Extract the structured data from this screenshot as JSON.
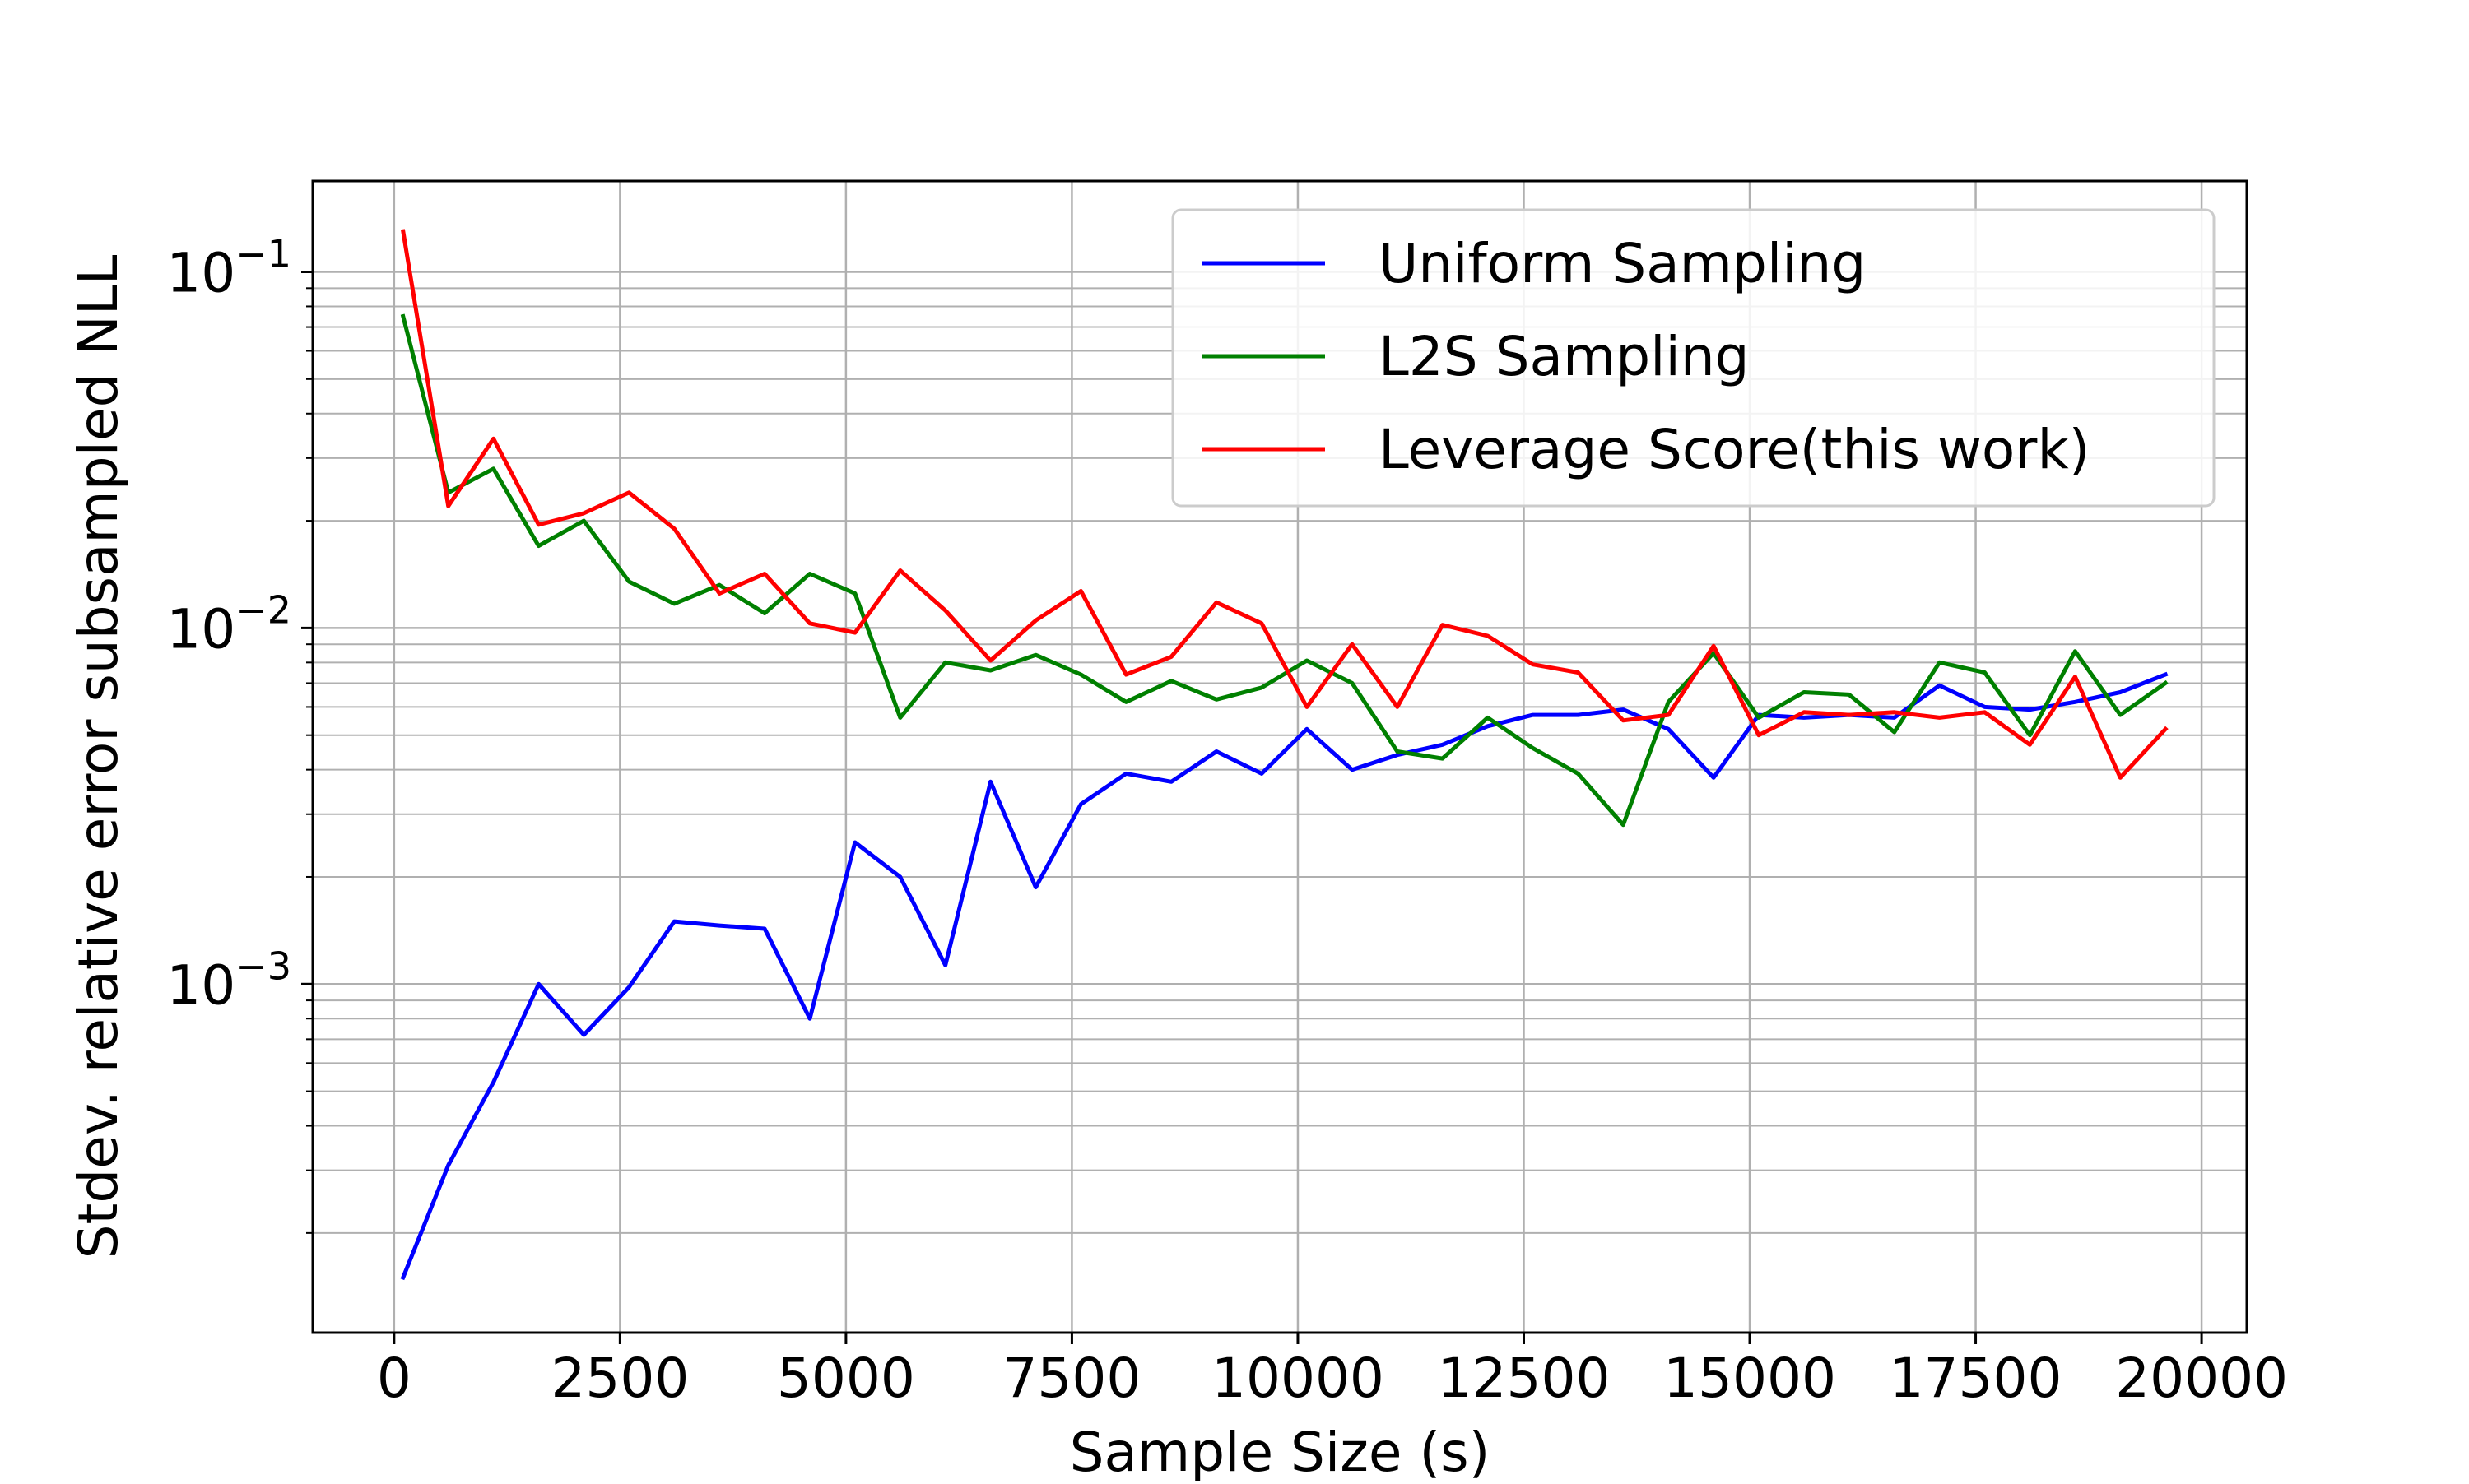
{
  "chart_data": {
    "type": "line",
    "title": "",
    "xlabel": "Sample Size (s)",
    "ylabel": "Stdev. relative error subsampled NLL",
    "yscale": "log",
    "xlim": [
      -900,
      20500
    ],
    "ylim": [
      0.000105,
      0.18
    ],
    "grid": true,
    "legend_position": "top-right",
    "x_ticks": [
      0,
      2500,
      5000,
      7500,
      10000,
      12500,
      15000,
      17500,
      20000
    ],
    "x_tick_labels": [
      "0",
      "2500",
      "5000",
      "7500",
      "10000",
      "12500",
      "15000",
      "17500",
      "20000"
    ],
    "y_ticks": [
      0.001,
      0.01,
      0.1
    ],
    "y_tick_labels": [
      {
        "base": "10",
        "exp": "−3"
      },
      {
        "base": "10",
        "exp": "−2"
      },
      {
        "base": "10",
        "exp": "−1"
      }
    ],
    "x": [
      100,
      600,
      1100,
      1600,
      2100,
      2600,
      3100,
      3600,
      4100,
      4600,
      5100,
      5600,
      6100,
      6600,
      7100,
      7600,
      8100,
      8600,
      9100,
      9600,
      10100,
      10600,
      11100,
      11600,
      12100,
      12600,
      13100,
      13600,
      14100,
      14600,
      15100,
      15600,
      16100,
      16600,
      17100,
      17600,
      18100,
      18600,
      19100,
      19600
    ],
    "series": [
      {
        "name": "Uniform Sampling",
        "color": "#0000ff",
        "values": [
          0.00015,
          0.00031,
          0.00053,
          0.001,
          0.00072,
          0.00098,
          0.0015,
          0.00146,
          0.00143,
          0.0008,
          0.0025,
          0.002,
          0.00113,
          0.0037,
          0.00187,
          0.0032,
          0.0039,
          0.0037,
          0.0045,
          0.0039,
          0.0052,
          0.004,
          0.0044,
          0.0047,
          0.0053,
          0.0057,
          0.0057,
          0.0059,
          0.0052,
          0.0038,
          0.0057,
          0.0056,
          0.0057,
          0.0056,
          0.0069,
          0.006,
          0.0059,
          0.0062,
          0.0066,
          0.0074
        ]
      },
      {
        "name": "L2S Sampling",
        "color": "#008000",
        "values": [
          0.075,
          0.024,
          0.028,
          0.017,
          0.02,
          0.0135,
          0.0117,
          0.0132,
          0.011,
          0.0142,
          0.0125,
          0.0056,
          0.008,
          0.0076,
          0.0084,
          0.0074,
          0.0062,
          0.0071,
          0.0063,
          0.0068,
          0.0081,
          0.007,
          0.0045,
          0.0043,
          0.0056,
          0.0046,
          0.0039,
          0.0028,
          0.0062,
          0.0085,
          0.0056,
          0.0066,
          0.0065,
          0.0051,
          0.008,
          0.0075,
          0.005,
          0.0086,
          0.0057,
          0.007
        ]
      },
      {
        "name": "Leverage Score(this work)",
        "color": "#ff0000",
        "values": [
          0.13,
          0.022,
          0.034,
          0.0195,
          0.021,
          0.024,
          0.019,
          0.0125,
          0.0142,
          0.0103,
          0.0097,
          0.0145,
          0.0112,
          0.0081,
          0.0105,
          0.0127,
          0.0074,
          0.0083,
          0.0118,
          0.0103,
          0.006,
          0.009,
          0.006,
          0.0102,
          0.0095,
          0.0079,
          0.0075,
          0.0055,
          0.0057,
          0.0089,
          0.005,
          0.0058,
          0.0057,
          0.0058,
          0.0056,
          0.0058,
          0.0047,
          0.0073,
          0.0038,
          0.0052
        ]
      }
    ]
  }
}
